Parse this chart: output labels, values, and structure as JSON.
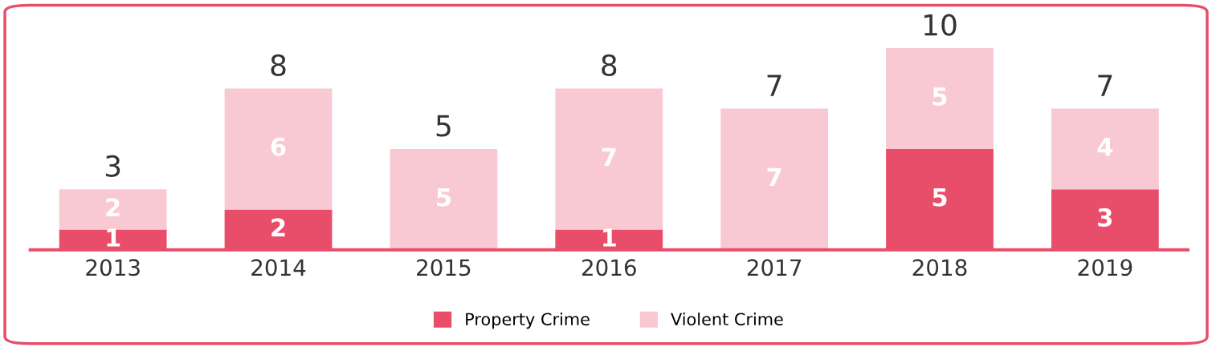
{
  "chart_data": {
    "type": "bar",
    "stacked": true,
    "categories": [
      "2013",
      "2014",
      "2015",
      "2016",
      "2017",
      "2018",
      "2019"
    ],
    "series": [
      {
        "name": "Property Crime",
        "color": "#e84e6a",
        "values": [
          1,
          2,
          0,
          1,
          0,
          5,
          3
        ],
        "value_labels": [
          "1",
          "2",
          null,
          "1",
          null,
          "5",
          "3"
        ]
      },
      {
        "name": "Violent Crime",
        "color": "#f8c9d2",
        "values": [
          2,
          6,
          5,
          7,
          7,
          5,
          4
        ],
        "value_labels": [
          "2",
          "6",
          "5",
          "7",
          "7",
          "5",
          "4"
        ]
      }
    ],
    "totals": [
      "3",
      "8",
      "5",
      "8",
      "7",
      "10",
      "7"
    ],
    "legend": "bottom",
    "grid": false
  }
}
